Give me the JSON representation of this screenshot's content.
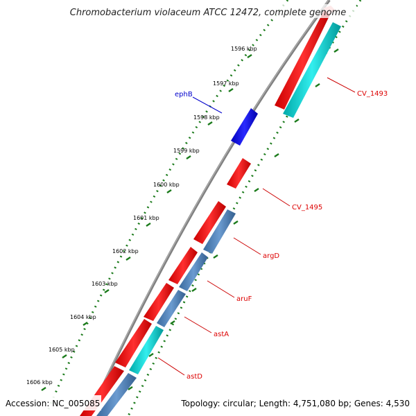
{
  "title": "Chromobacterium violaceum ATCC 12472, complete genome",
  "footer": {
    "accession": "Accession: NC_005085",
    "summary": "Topology: circular; Length: 4,751,080 bp; Genes: 4,530"
  },
  "ticks": [
    "1596 kbp",
    "1597 kbp",
    "1598 kbp",
    "1599 kbp",
    "1600 kbp",
    "1601 kbp",
    "1602 kbp",
    "1603 kbp",
    "1604 kbp",
    "1605 kbp",
    "1606 kbp"
  ],
  "genes": [
    {
      "label": "ephB",
      "color": "#0000cc"
    },
    {
      "label": "CV_1493",
      "color": "#dd0000"
    },
    {
      "label": "CV_1495",
      "color": "#dd0000"
    },
    {
      "label": "argD",
      "color": "#dd0000"
    },
    {
      "label": "aruF",
      "color": "#dd0000"
    },
    {
      "label": "astA",
      "color": "#dd0000"
    },
    {
      "label": "astD",
      "color": "#dd0000"
    }
  ],
  "colors": {
    "backbone": "#808080",
    "forward_gene": "#ff0000",
    "reverse_gene": "#0000ff",
    "cyan_gene": "#00cccc",
    "steel_gene": "#4f7fb3",
    "dots": "#1a7a1a",
    "label_line": "#cc0000",
    "ephB_line": "#0000cc"
  }
}
